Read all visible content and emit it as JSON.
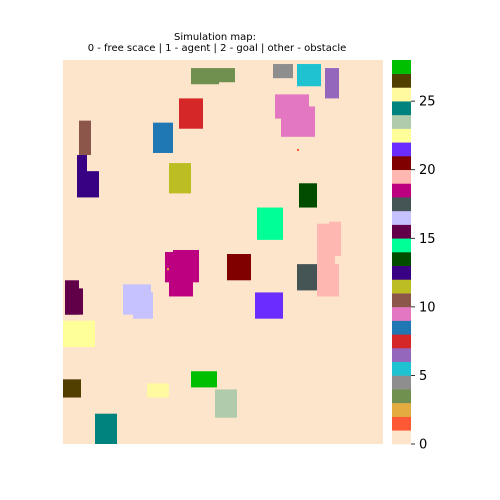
{
  "chart_data": {
    "type": "heatmap",
    "title": [
      "Simulation map:",
      "0 - free scace | 1 - agent | 2 - goal | other - obstacle"
    ],
    "xlabel": "",
    "ylabel": "",
    "grid": false,
    "map": {
      "width": 160,
      "height": 190,
      "free_value": 0
    },
    "colorbar": {
      "range": [
        0,
        27
      ],
      "ticks": [
        0,
        5,
        10,
        15,
        20,
        25
      ],
      "colors": [
        "#fde5cb",
        "#fd5934",
        "#e4ac40",
        "#6f904e",
        "#8e8e8e",
        "#1ec2d0",
        "#9467bd",
        "#d62728",
        "#1f77b4",
        "#e377c2",
        "#8c564b",
        "#bcbd22",
        "#380082",
        "#004d00",
        "#00ff96",
        "#610048",
        "#c6c1ff",
        "#455455",
        "#bd007f",
        "#ffb7b1",
        "#800000",
        "#6a2dff",
        "#ffff99",
        "#b0cbab",
        "#00827f",
        "#fffaa0",
        "#513f00",
        "#00be00"
      ]
    },
    "cells": [
      {
        "value": 1,
        "x": 117,
        "y": 44
      },
      {
        "value": 2,
        "x": 52,
        "y": 103
      }
    ],
    "obstacles": [
      {
        "value": 3,
        "rects": [
          [
            64,
            4,
            14,
            8
          ],
          [
            78,
            4,
            8,
            7
          ]
        ]
      },
      {
        "value": 4,
        "rects": [
          [
            105,
            2,
            10,
            7
          ]
        ]
      },
      {
        "value": 5,
        "rects": [
          [
            117,
            2,
            12,
            11
          ]
        ]
      },
      {
        "value": 6,
        "rects": [
          [
            131,
            4,
            7,
            15
          ]
        ]
      },
      {
        "value": 7,
        "rects": [
          [
            58,
            19,
            12,
            15
          ]
        ]
      },
      {
        "value": 8,
        "rects": [
          [
            45,
            31,
            10,
            15
          ]
        ]
      },
      {
        "value": 9,
        "rects": [
          [
            106,
            17,
            17,
            12
          ],
          [
            109,
            23,
            17,
            15
          ]
        ]
      },
      {
        "value": 10,
        "rects": [
          [
            8,
            30,
            6,
            17
          ]
        ]
      },
      {
        "value": 11,
        "rects": [
          [
            53,
            51,
            11,
            15
          ]
        ]
      },
      {
        "value": 12,
        "rects": [
          [
            7,
            47,
            5,
            18
          ],
          [
            7,
            55,
            11,
            13
          ]
        ]
      },
      {
        "value": 13,
        "rects": [
          [
            118,
            61,
            9,
            12
          ]
        ]
      },
      {
        "value": 14,
        "rects": [
          [
            97,
            73,
            13,
            16
          ]
        ]
      },
      {
        "value": 15,
        "rects": [
          [
            1,
            109,
            7,
            17
          ],
          [
            1,
            113,
            9,
            13
          ]
        ]
      },
      {
        "value": 16,
        "rects": [
          [
            30,
            111,
            14,
            15
          ],
          [
            35,
            115,
            10,
            13
          ]
        ]
      },
      {
        "value": 17,
        "rects": [
          [
            117,
            101,
            12,
            13
          ]
        ]
      },
      {
        "value": 18,
        "rects": [
          [
            51,
            95,
            14,
            15
          ],
          [
            55,
            94,
            13,
            16
          ],
          [
            53,
            104,
            12,
            13
          ]
        ]
      },
      {
        "value": 19,
        "rects": [
          [
            127,
            81,
            9,
            25
          ],
          [
            133,
            80,
            6,
            17
          ],
          [
            127,
            101,
            11,
            16
          ]
        ]
      },
      {
        "value": 20,
        "rects": [
          [
            82,
            96,
            12,
            13
          ]
        ]
      },
      {
        "value": 21,
        "rects": [
          [
            96,
            115,
            14,
            13
          ]
        ]
      },
      {
        "value": 22,
        "rects": [
          [
            0,
            129,
            16,
            13
          ]
        ]
      },
      {
        "value": 23,
        "rects": [
          [
            76,
            163,
            11,
            14
          ]
        ]
      },
      {
        "value": 24,
        "rects": [
          [
            16,
            175,
            11,
            15
          ]
        ]
      },
      {
        "value": 25,
        "rects": [
          [
            42,
            160,
            11,
            7
          ]
        ]
      },
      {
        "value": 26,
        "rects": [
          [
            0,
            158,
            9,
            9
          ]
        ]
      },
      {
        "value": 27,
        "rects": [
          [
            64,
            154,
            13,
            8
          ]
        ]
      }
    ]
  }
}
